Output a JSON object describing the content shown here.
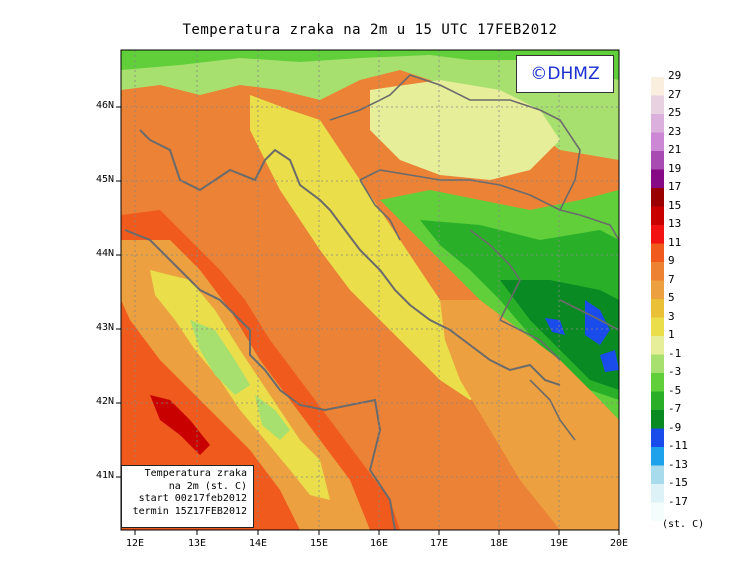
{
  "title": "Temperatura zraka na 2m u 15 UTC 17FEB2012",
  "logo": "©DHMZ",
  "infobox": {
    "lines": [
      "Temperatura zraka",
      "na 2m (st. C)",
      "start 00z17feb2012",
      "termin 15Z17FEB2012"
    ]
  },
  "axes": {
    "lon_ticks": [
      "12E",
      "13E",
      "14E",
      "15E",
      "16E",
      "17E",
      "18E",
      "19E",
      "20E"
    ],
    "lat_ticks": [
      "46N",
      "45N",
      "44N",
      "43N",
      "42N",
      "41N"
    ]
  },
  "colorbar": {
    "labels": [
      "29",
      "27",
      "25",
      "23",
      "21",
      "19",
      "17",
      "15",
      "13",
      "11",
      "9",
      "7",
      "5",
      "3",
      "1",
      "-1",
      "-3",
      "-5",
      "-7",
      "-9",
      "-11",
      "-13",
      "-15",
      "-17"
    ],
    "unit": "(st. C)",
    "colors": [
      "#faeede",
      "#e8d2e2",
      "#dcb0dc",
      "#cc88d4",
      "#a84cb4",
      "#860a86",
      "#9a0000",
      "#c80000",
      "#f21212",
      "#f05a1c",
      "#ec8232",
      "#eca040",
      "#eac036",
      "#eade4a",
      "#e6ee9a",
      "#a8e070",
      "#60cf3a",
      "#2ab028",
      "#0a8a22",
      "#1a4cec",
      "#1ea2ec",
      "#a8dcec",
      "#dcf2f6",
      "#f4fcfc"
    ]
  },
  "colors": {
    "coastline": "#6b6b6b",
    "orange": "#eb8236",
    "dark_orange": "#f05a1c",
    "green": "#60cf3a"
  }
}
